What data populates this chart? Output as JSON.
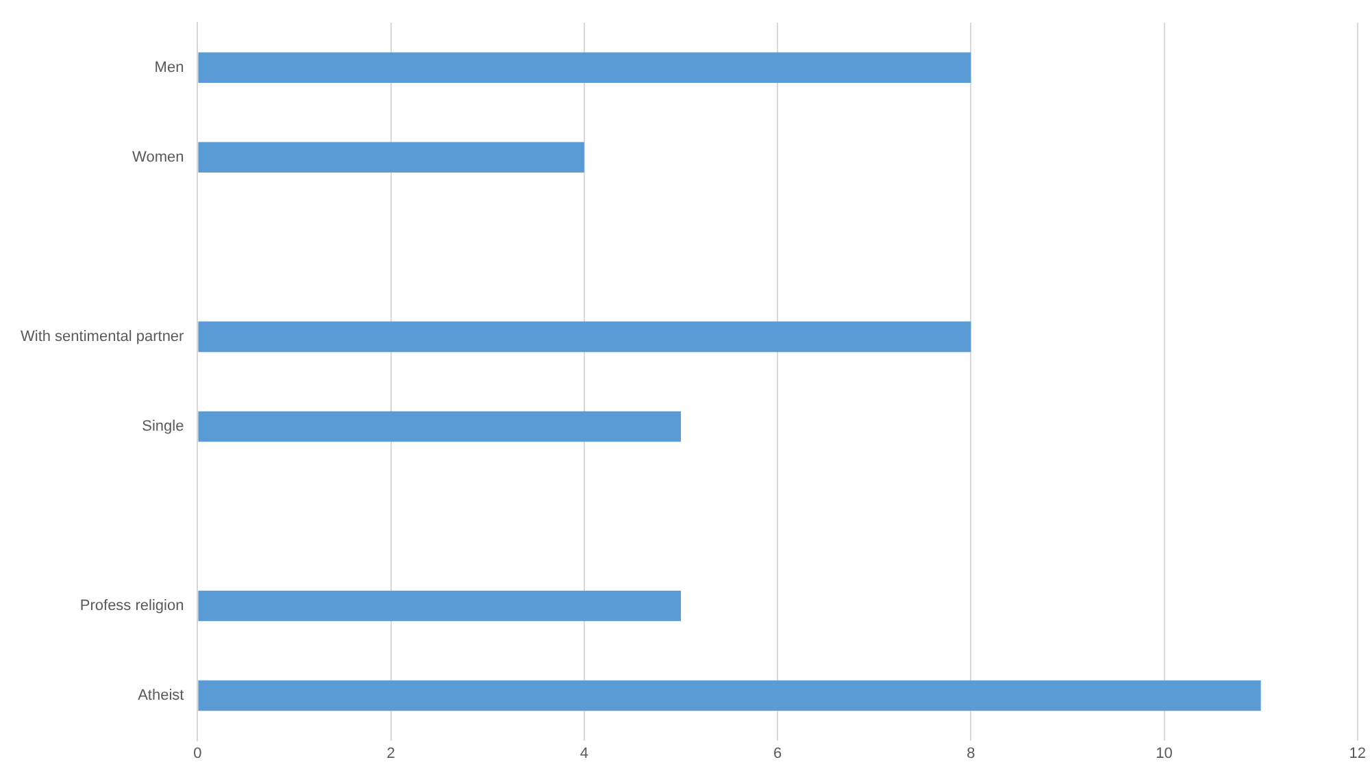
{
  "chart_data": {
    "type": "bar",
    "orientation": "horizontal",
    "categories": [
      "Men",
      "Women",
      null,
      "With sentimental partner",
      "Single",
      null,
      "Profess religion",
      "Atheist"
    ],
    "values": [
      8,
      4,
      null,
      8,
      5,
      null,
      5,
      11
    ],
    "color": "#5b9bd5",
    "xlim": [
      0,
      12
    ],
    "xticks": [
      0,
      2,
      4,
      6,
      8,
      10,
      12
    ],
    "grid": "x",
    "legend": false
  }
}
